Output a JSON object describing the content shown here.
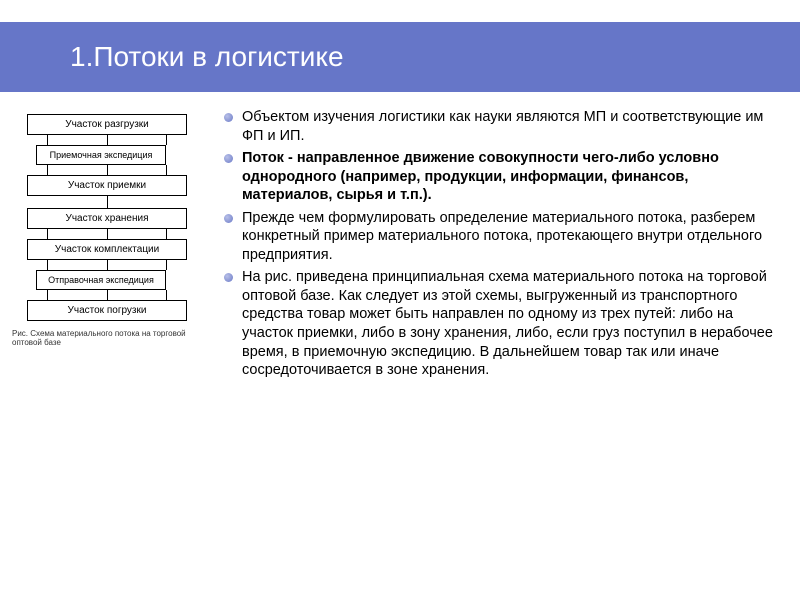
{
  "header": {
    "title": "1.Потоки в логистике",
    "bg_color": "#6676c8",
    "text_color": "#ffffff",
    "title_fontsize": 28
  },
  "diagram": {
    "type": "flowchart",
    "boxes": [
      {
        "label": "Участок разгрузки",
        "style": "main"
      },
      {
        "label": "Приемочная экспедиция",
        "style": "small"
      },
      {
        "label": "Участок приемки",
        "style": "main"
      },
      {
        "label": "Участок  хранения",
        "style": "main"
      },
      {
        "label": "Участок комплектации",
        "style": "main"
      },
      {
        "label": "Отправочная экспедиция",
        "style": "small"
      },
      {
        "label": "Участок  погрузки",
        "style": "main"
      }
    ],
    "caption": "Рис.     Схема материального потока на торговой оптовой базе",
    "box_border_color": "#000000",
    "box_bg_color": "#ffffff",
    "connector_color": "#000000"
  },
  "bullets": [
    {
      "parts": [
        {
          "text": "Объектом изучения логистики как науки являются МП и соответствующие им ФП и ИП.",
          "bold": false
        }
      ]
    },
    {
      "parts": [
        {
          "text": "Поток - направленное движение совокупности чего-либо условно однородного (например, продукции, информации, финансов, материалов, сырья и т.п.).",
          "bold": true
        }
      ]
    },
    {
      "parts": [
        {
          "text": "Прежде чем формулировать определение материального потока, разберем конкретный пример материального потока, протекающего внутри отдельного предприятия.",
          "bold": false
        }
      ]
    },
    {
      "parts": [
        {
          "text": "На рис. приведена принципиальная схема материального потока на торговой оптовой базе. Как следует из этой схемы, выгруженный из транспортного средства товар может быть направлен по одному из трех путей: либо на участок приемки, либо в зону хранения, либо, если груз поступил в нерабочее время, в приемочную экспедицию. В дальнейшем товар так или иначе сосредоточивается в зоне хранения.",
          "bold": false
        }
      ]
    }
  ],
  "style": {
    "bullet_color": "#6676c8",
    "body_fontsize": 14.5,
    "diagram_fontsize": 10,
    "diagram_small_fontsize": 9,
    "caption_fontsize": 8
  }
}
